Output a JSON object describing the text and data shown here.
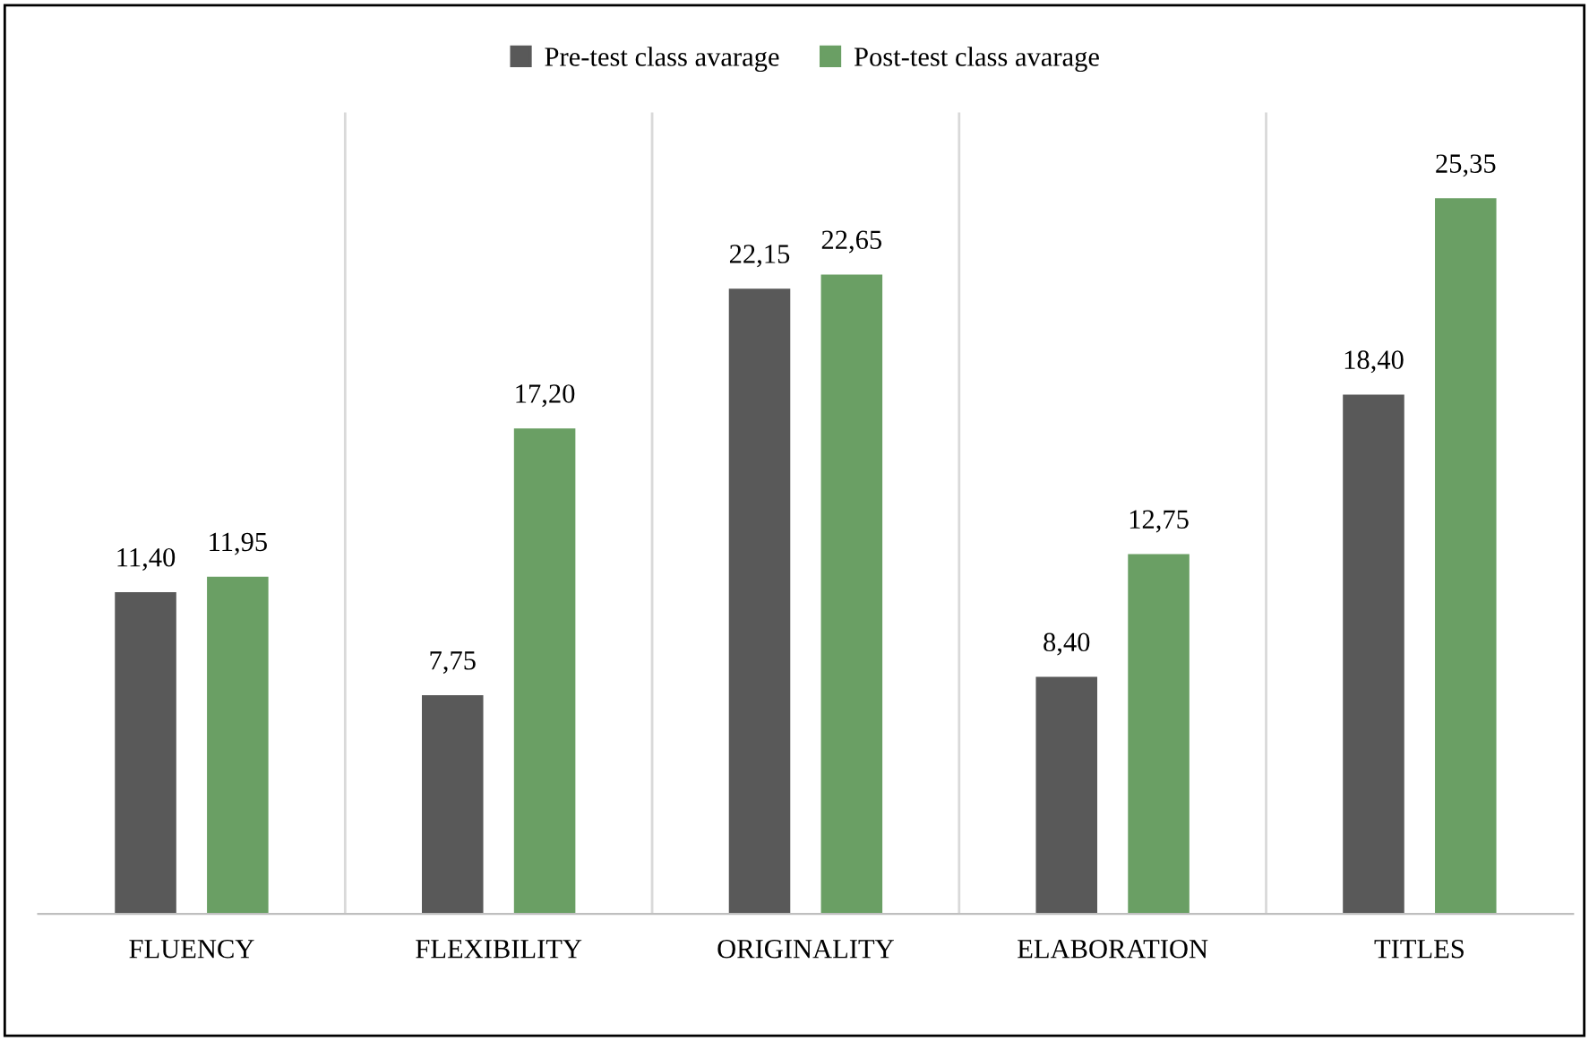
{
  "chart_data": {
    "type": "bar",
    "categories": [
      "FLUENCY",
      "FLEXIBILITY",
      "ORIGINALITY",
      "ELABORATION",
      "TITLES"
    ],
    "series": [
      {
        "name": "Pre-test class avarage",
        "color": "#595959",
        "values": [
          11.4,
          7.75,
          22.15,
          8.4,
          18.4
        ],
        "value_labels": [
          "11,40",
          "7,75",
          "22,15",
          "8,40",
          "18,40"
        ]
      },
      {
        "name": "Post-test class avarage",
        "color": "#6a9f64",
        "values": [
          11.95,
          17.2,
          22.65,
          12.75,
          25.35
        ],
        "value_labels": [
          "11,95",
          "17,20",
          "22,65",
          "12,75",
          "25,35"
        ]
      }
    ],
    "grid": "x",
    "legend": "top"
  }
}
